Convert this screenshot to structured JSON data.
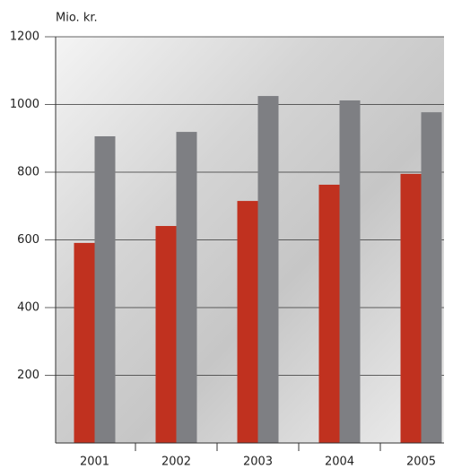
{
  "chart_data": {
    "type": "bar",
    "y_label": "Mio. kr.",
    "categories": [
      "2001",
      "2002",
      "2003",
      "2004",
      "2005"
    ],
    "series": [
      {
        "color": "#c0311f",
        "values": [
          591,
          641,
          715,
          763,
          795
        ]
      },
      {
        "color": "#7e7f83",
        "values": [
          906,
          919,
          1025,
          1012,
          977
        ]
      }
    ],
    "ylim": [
      0,
      1200
    ],
    "yticks": [
      200,
      400,
      600,
      800,
      1000,
      1200
    ],
    "grid": true
  }
}
